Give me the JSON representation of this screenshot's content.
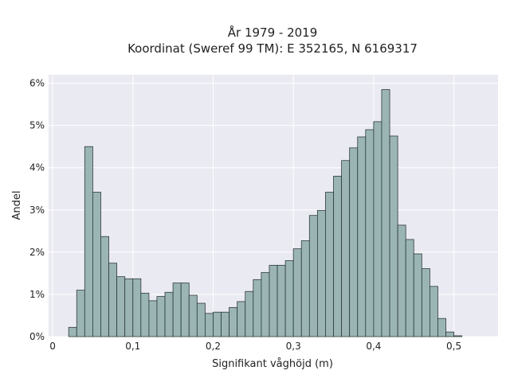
{
  "chart_data": {
    "type": "bar",
    "title": "År 1979 - 2019",
    "subtitle": "Koordinat (Sweref 99 TM): E 352165, N 6169317",
    "xlabel": "Signifikant våghöjd (m)",
    "ylabel": "Andel",
    "xlim": [
      -0.005,
      0.555
    ],
    "ylim": [
      0,
      6.2
    ],
    "x_ticks": [
      0,
      0.1,
      0.2,
      0.3,
      0.4,
      0.5
    ],
    "x_tick_labels": [
      "0",
      "0,1",
      "0,2",
      "0,3",
      "0,4",
      "0,5"
    ],
    "y_ticks": [
      0,
      1,
      2,
      3,
      4,
      5,
      6
    ],
    "y_tick_labels": [
      "0%",
      "1%",
      "2%",
      "3%",
      "4%",
      "5%",
      "6%"
    ],
    "grid": true,
    "bin_width": 0.01,
    "bin_starts": [
      0.02,
      0.03,
      0.04,
      0.05,
      0.06,
      0.07,
      0.08,
      0.09,
      0.1,
      0.11,
      0.12,
      0.13,
      0.14,
      0.15,
      0.16,
      0.17,
      0.18,
      0.19,
      0.2,
      0.21,
      0.22,
      0.23,
      0.24,
      0.25,
      0.26,
      0.27,
      0.28,
      0.29,
      0.3,
      0.31,
      0.32,
      0.33,
      0.34,
      0.35,
      0.36,
      0.37,
      0.38,
      0.39,
      0.4,
      0.41,
      0.42,
      0.43,
      0.44,
      0.45,
      0.46,
      0.47,
      0.48,
      0.49,
      0.5,
      0.51,
      0.52
    ],
    "values": [
      0.22,
      1.1,
      4.5,
      3.42,
      2.37,
      1.74,
      1.42,
      1.37,
      1.37,
      1.03,
      0.85,
      0.95,
      1.05,
      1.27,
      1.27,
      0.98,
      0.79,
      0.55,
      0.58,
      0.58,
      0.69,
      0.83,
      1.07,
      1.35,
      1.52,
      1.69,
      1.69,
      1.8,
      2.08,
      2.27,
      2.87,
      2.99,
      3.42,
      3.8,
      4.17,
      4.47,
      4.73,
      4.9,
      5.09,
      5.85,
      4.75,
      2.64,
      2.3,
      1.96,
      1.61,
      1.19,
      0.43,
      0.11,
      0.02,
      0.0,
      0.0
    ],
    "colors": {
      "bar_fill": "#9bb5b5",
      "bar_edge": "#2f3a3a",
      "plot_bg": "#eaeaf2",
      "grid": "#ffffff"
    }
  }
}
